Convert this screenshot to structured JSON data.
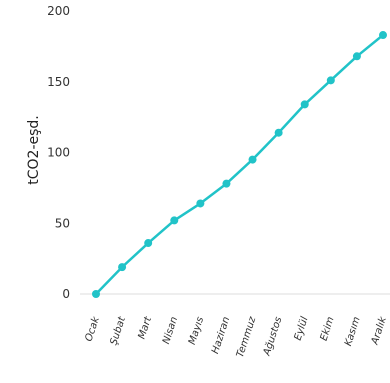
{
  "chart_data": {
    "type": "line",
    "categories": [
      "Ocak",
      "Şubat",
      "Mart",
      "Nisan",
      "Mayıs",
      "Haziran",
      "Temmuz",
      "Ağustos",
      "Eylül",
      "Ekim",
      "Kasım",
      "Aralık"
    ],
    "series": [
      {
        "values": [
          0,
          19,
          36,
          52,
          64,
          78,
          95,
          114,
          134,
          151,
          168,
          183
        ]
      }
    ],
    "ylabel": "tCO2-eşd.",
    "xlabel": "",
    "ylim": [
      0,
      200
    ],
    "yticks": [
      0,
      50,
      100,
      150,
      200
    ],
    "grid": false,
    "colors": {
      "line": "#21C3C8",
      "axis": "#dddddd"
    }
  }
}
